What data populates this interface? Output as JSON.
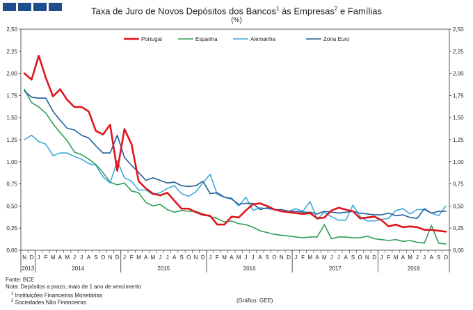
{
  "header": {
    "title": "Taxa de Juro de Novos Depósitos dos Bancos",
    "title_sup1": "1",
    "title_mid": " às Empresas",
    "title_sup2": "2",
    "title_end": " e Famílias",
    "subtitle": "(%)"
  },
  "footer": {
    "source": "Fonte: BCE",
    "note": "Nota: Depósitos a prazo, mais de 1 ano de vencimento",
    "note1_sup": "1",
    "note1": " Instituições Financeiras Monetárias",
    "note2_sup": "2",
    "note2": " Sociedades Não Financeiras",
    "credit": "(Gráfico: GEE)"
  },
  "chart_data": {
    "type": "line",
    "title": "Taxa de Juro de Novos Depósitos dos Bancos às Empresas e Famílias",
    "ylabel": "%",
    "ylim": [
      0,
      2.5
    ],
    "yticks": [
      "0,00",
      "0,25",
      "0,50",
      "0,75",
      "1,00",
      "1,25",
      "1,50",
      "1,75",
      "2,00",
      "2,25",
      "2,50"
    ],
    "months": [
      "N",
      "D",
      "J",
      "F",
      "M",
      "A",
      "M",
      "J",
      "J",
      "A",
      "S",
      "O",
      "N",
      "D",
      "J",
      "F",
      "M",
      "A",
      "M",
      "J",
      "J",
      "A",
      "S",
      "O",
      "N",
      "D",
      "J",
      "F",
      "M",
      "A",
      "M",
      "J",
      "J",
      "A",
      "S",
      "O",
      "N",
      "D",
      "J",
      "F",
      "M",
      "A",
      "M",
      "J",
      "J",
      "A",
      "S",
      "O",
      "N",
      "D",
      "J",
      "F",
      "M",
      "A",
      "M",
      "J",
      "J",
      "A",
      "S",
      "O"
    ],
    "years": [
      {
        "label": "2013",
        "start": 0,
        "end": 1
      },
      {
        "label": "2014",
        "start": 2,
        "end": 13
      },
      {
        "label": "2015",
        "start": 14,
        "end": 25
      },
      {
        "label": "2016",
        "start": 26,
        "end": 37
      },
      {
        "label": "2017",
        "start": 38,
        "end": 49
      },
      {
        "label": "2018",
        "start": 50,
        "end": 59
      }
    ],
    "series": [
      {
        "name": "Portugal",
        "color": "#e1141b",
        "values": [
          2.0,
          1.93,
          2.2,
          1.95,
          1.74,
          1.82,
          1.7,
          1.62,
          1.62,
          1.57,
          1.35,
          1.31,
          1.42,
          0.9,
          1.37,
          1.2,
          0.78,
          0.7,
          0.64,
          0.62,
          0.65,
          0.56,
          0.47,
          0.47,
          0.43,
          0.4,
          0.39,
          0.29,
          0.29,
          0.38,
          0.37,
          0.45,
          0.52,
          0.53,
          0.5,
          0.46,
          0.44,
          0.43,
          0.42,
          0.41,
          0.42,
          0.36,
          0.37,
          0.45,
          0.48,
          0.46,
          0.44,
          0.36,
          0.37,
          0.38,
          0.34,
          0.27,
          0.29,
          0.26,
          0.27,
          0.26,
          0.23,
          0.23,
          0.22,
          0.21
        ]
      },
      {
        "name": "Espanha",
        "color": "#2e9d57",
        "values": [
          1.82,
          1.67,
          1.62,
          1.55,
          1.43,
          1.33,
          1.24,
          1.11,
          1.08,
          1.03,
          0.97,
          0.88,
          0.77,
          0.74,
          0.76,
          0.67,
          0.65,
          0.54,
          0.5,
          0.52,
          0.46,
          0.43,
          0.45,
          0.44,
          0.44,
          0.41,
          0.38,
          0.36,
          0.32,
          0.33,
          0.3,
          0.29,
          0.26,
          0.22,
          0.2,
          0.18,
          0.17,
          0.16,
          0.15,
          0.14,
          0.15,
          0.15,
          0.29,
          0.13,
          0.15,
          0.15,
          0.14,
          0.14,
          0.16,
          0.13,
          0.12,
          0.11,
          0.12,
          0.1,
          0.11,
          0.09,
          0.08,
          0.28,
          0.08,
          0.07
        ]
      },
      {
        "name": "Alemanha",
        "color": "#3fa9d8",
        "values": [
          1.25,
          1.3,
          1.23,
          1.2,
          1.07,
          1.1,
          1.1,
          1.06,
          1.03,
          0.98,
          0.96,
          0.83,
          0.76,
          1.01,
          0.82,
          0.78,
          0.68,
          0.68,
          0.63,
          0.65,
          0.7,
          0.73,
          0.64,
          0.61,
          0.66,
          0.76,
          0.86,
          0.63,
          0.6,
          0.59,
          0.5,
          0.6,
          0.45,
          0.48,
          0.47,
          0.46,
          0.44,
          0.44,
          0.47,
          0.44,
          0.55,
          0.35,
          0.43,
          0.38,
          0.34,
          0.34,
          0.51,
          0.38,
          0.33,
          0.33,
          0.35,
          0.36,
          0.45,
          0.47,
          0.41,
          0.46,
          0.46,
          0.42,
          0.39,
          0.5
        ]
      },
      {
        "name": "Zona Euro",
        "color": "#1f5d9a",
        "values": [
          1.8,
          1.73,
          1.72,
          1.72,
          1.57,
          1.47,
          1.38,
          1.36,
          1.3,
          1.27,
          1.18,
          1.1,
          1.1,
          1.3,
          1.05,
          0.96,
          0.88,
          0.79,
          0.82,
          0.79,
          0.76,
          0.77,
          0.73,
          0.72,
          0.73,
          0.78,
          0.64,
          0.65,
          0.6,
          0.58,
          0.52,
          0.53,
          0.53,
          0.46,
          0.48,
          0.46,
          0.46,
          0.44,
          0.44,
          0.43,
          0.43,
          0.41,
          0.44,
          0.43,
          0.42,
          0.43,
          0.44,
          0.42,
          0.41,
          0.4,
          0.4,
          0.42,
          0.39,
          0.4,
          0.37,
          0.36,
          0.47,
          0.42,
          0.44,
          0.44
        ]
      }
    ]
  }
}
